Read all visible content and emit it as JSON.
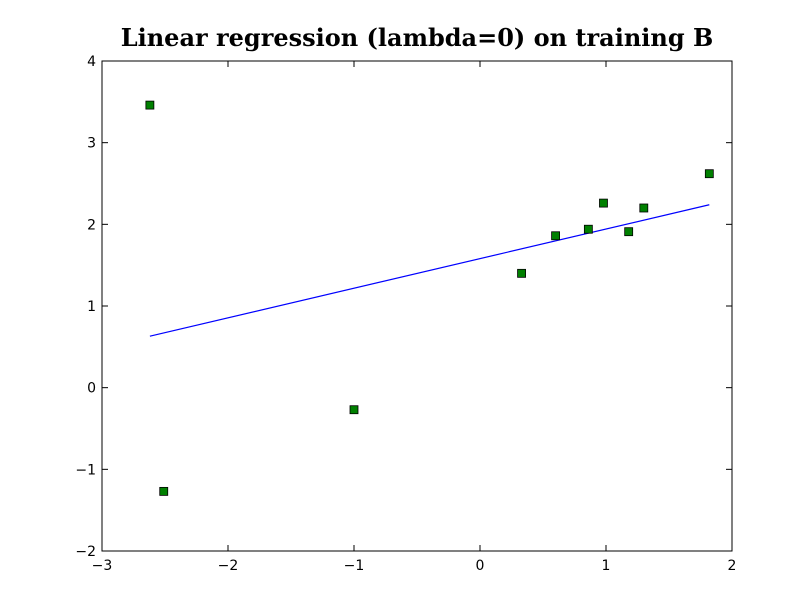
{
  "chart_data": {
    "type": "scatter",
    "title": "Linear regression (lambda=0) on training B",
    "xlabel": "",
    "ylabel": "",
    "xlim": [
      -3,
      2
    ],
    "ylim": [
      -2,
      4
    ],
    "xticks": [
      -3,
      -2,
      -1,
      0,
      1,
      2
    ],
    "yticks": [
      -2,
      -1,
      0,
      1,
      2,
      3,
      4
    ],
    "xtick_labels": [
      "−3",
      "−2",
      "−1",
      "0",
      "1",
      "2"
    ],
    "ytick_labels": [
      "−2",
      "−1",
      "0",
      "1",
      "2",
      "3",
      "4"
    ],
    "grid": false,
    "series": [
      {
        "type": "scatter",
        "marker": "square",
        "color": "#008000",
        "points": [
          {
            "x": -2.62,
            "y": 3.46
          },
          {
            "x": -2.51,
            "y": -1.27
          },
          {
            "x": -1.0,
            "y": -0.27
          },
          {
            "x": 0.33,
            "y": 1.4
          },
          {
            "x": 0.6,
            "y": 1.86
          },
          {
            "x": 0.86,
            "y": 1.94
          },
          {
            "x": 0.98,
            "y": 2.26
          },
          {
            "x": 1.18,
            "y": 1.91
          },
          {
            "x": 1.3,
            "y": 2.2
          },
          {
            "x": 1.82,
            "y": 2.62
          }
        ]
      },
      {
        "type": "line",
        "color": "#0000ff",
        "points": [
          {
            "x": -2.62,
            "y": 0.63
          },
          {
            "x": 1.82,
            "y": 2.24
          }
        ]
      }
    ]
  }
}
